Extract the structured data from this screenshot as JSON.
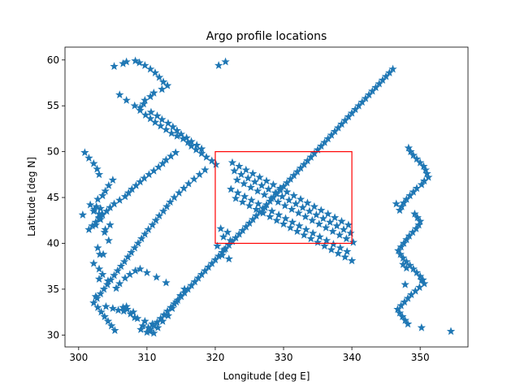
{
  "chart_data": {
    "type": "scatter",
    "title": "Argo profile locations",
    "xlabel": "Longitude [deg E]",
    "ylabel": "Latitude [deg N]",
    "xlim": [
      298,
      357
    ],
    "ylim": [
      28.7,
      61.4
    ],
    "xticks": [
      300,
      310,
      320,
      330,
      340,
      350
    ],
    "yticks": [
      30,
      35,
      40,
      45,
      50,
      55,
      60
    ],
    "grid": false,
    "legend": "none",
    "marker": "star",
    "marker_color": "#1f77b4",
    "box": {
      "x": [
        320,
        340
      ],
      "y": [
        40,
        50
      ],
      "color": "#ff0000"
    },
    "series": [
      {
        "x": [
          300.6,
          302.2,
          302.6,
          303.2,
          303.4,
          303.0,
          302.5,
          303.8,
          304.4,
          302.8,
          303.1,
          303.0,
          302.5,
          304.0,
          305.0,
          305.8,
          306.5,
          307.1,
          308.0,
          308.6,
          309.4,
          310.2,
          310.8,
          309.7,
          308.2,
          307.6,
          307.0,
          306.6,
          309.1,
          310.4,
          311.0,
          311.6,
          312.3,
          313.1,
          313.7,
          314.3,
          314.9,
          315.5,
          312.8,
          311.4,
          310.0,
          309.0,
          308.3,
          307.5,
          306.8,
          306.0,
          305.5,
          304.3,
          303.5,
          303.0,
          302.2,
          303.6,
          303.9,
          304.6,
          303.2,
          303.0,
          302.3,
          301.7,
          302.8,
          303.5,
          303.9,
          304.4,
          305.0,
          303.0,
          302.7,
          302.2,
          301.5,
          300.9,
          305.2,
          306.5,
          307.0,
          308.3,
          308.9,
          309.7,
          310.5,
          311.2,
          311.8,
          312.4,
          313.0,
          312.2,
          311.0,
          310.5,
          309.7,
          309.5,
          309.0,
          310.6,
          311.5,
          312.2,
          313.1,
          313.8,
          314.4,
          315.0,
          315.8,
          316.5,
          317.3,
          318.0,
          314.2,
          313.5,
          312.8,
          312.3,
          311.7,
          311.0,
          310.3,
          309.6,
          309.0,
          308.4,
          307.8,
          307.3,
          306.8,
          306.0,
          305.2,
          304.6,
          304.1,
          303.5,
          303.0,
          302.5,
          302.0,
          301.5,
          306.0,
          307.0,
          308.2,
          309.0,
          309.8,
          310.5,
          311.2,
          312.0,
          312.8,
          313.6,
          314.4,
          315.3,
          316.0,
          316.5,
          317.2,
          318.0,
          318.7,
          319.5,
          320.1,
          318.5,
          317.7,
          316.9,
          316.1,
          315.4,
          314.7,
          314.0,
          313.4,
          312.9,
          312.4,
          311.8,
          311.3,
          310.8,
          310.2,
          309.7,
          309.2,
          308.7,
          308.2,
          307.7,
          307.2,
          306.7,
          306.2,
          305.7,
          305.2,
          304.7,
          304.2,
          303.7,
          303.2,
          302.7,
          302.2,
          302.8,
          303.3,
          303.8,
          304.3,
          304.8,
          305.3,
          310.0,
          310.5,
          311.0,
          311.5,
          312.0,
          312.5,
          313.0,
          313.5,
          314.0,
          314.5,
          315.0,
          315.5,
          316.0,
          316.5,
          317.0,
          317.5,
          318.0,
          318.5,
          319.0,
          319.5,
          320.0,
          320.5,
          321.0,
          321.5,
          322.0,
          322.5,
          323.0,
          323.5,
          324.0,
          324.5,
          325.0,
          325.5,
          326.0,
          326.5,
          327.0,
          327.5,
          328.0,
          328.5,
          329.0,
          329.5,
          330.0,
          330.5,
          331.0,
          331.5,
          332.0,
          332.5,
          333.0,
          333.5,
          334.0,
          334.5,
          335.0,
          335.5,
          336.0,
          336.5,
          337.0,
          337.5,
          338.0,
          338.5,
          339.0,
          339.5,
          340.0,
          340.5,
          341.0,
          341.5,
          342.0,
          342.5,
          343.0,
          343.5,
          344.0,
          344.5,
          345.0,
          345.5,
          346.0,
          320.5,
          321.5,
          322.5,
          323.5,
          324.5,
          325.5,
          326.5,
          327.5,
          328.5,
          329.5,
          330.5,
          331.5,
          332.5,
          333.5,
          334.5,
          335.5,
          336.5,
          337.5,
          338.5,
          339.5,
          320.8,
          321.8,
          322.8,
          323.8,
          324.8,
          325.8,
          326.8,
          327.8,
          328.8,
          329.8,
          330.8,
          331.8,
          332.8,
          333.8,
          334.8,
          335.8,
          336.8,
          337.8,
          338.8,
          339.8,
          321.2,
          322.2,
          323.2,
          324.2,
          325.2,
          326.2,
          327.2,
          328.2,
          329.2,
          330.2,
          331.2,
          332.2,
          333.2,
          334.2,
          335.2,
          336.2,
          337.2,
          338.2,
          339.2,
          340.2,
          320.3,
          321.3,
          322.3,
          323.3,
          324.3,
          325.3,
          326.3,
          327.3,
          328.3,
          329.3,
          330.3,
          331.3,
          332.3,
          333.3,
          334.3,
          335.3,
          336.3,
          337.3,
          338.3,
          339.3,
          321.0,
          322.0,
          323.0,
          324.0,
          325.0,
          326.0,
          327.0,
          328.0,
          329.0,
          330.0,
          331.0,
          332.0,
          333.0,
          334.0,
          335.0,
          336.0,
          337.0,
          338.0,
          339.0,
          340.0,
          347.5,
          348.0,
          348.3,
          348.6,
          349.0,
          349.5,
          350.0,
          350.5,
          350.8,
          351.0,
          351.2,
          350.6,
          350.2,
          349.5,
          349.0,
          348.5,
          348.0,
          347.6,
          347.3,
          347.0,
          349.2,
          349.6,
          350.0,
          349.8,
          349.4,
          348.9,
          348.4,
          348.0,
          347.6,
          347.2,
          346.8,
          347.1,
          347.5,
          348.0,
          348.5,
          349.0,
          349.5,
          350.0,
          350.4,
          350.6,
          349.9,
          349.3,
          348.7,
          348.2,
          347.7,
          347.2,
          346.7,
          347.0,
          347.4,
          347.8,
          348.2,
          350.2,
          354.5,
          346.5,
          347.8,
          350.2
        ],
        "y": [
          43.1,
          43.5,
          44.0,
          43.8,
          43.2,
          42.8,
          42.0,
          41.2,
          40.3,
          39.5,
          38.8,
          36.1,
          34.2,
          33.1,
          32.9,
          32.7,
          33.0,
          32.8,
          32.5,
          31.8,
          31.0,
          30.8,
          31.2,
          31.5,
          31.9,
          32.3,
          33.1,
          32.6,
          30.6,
          30.4,
          30.2,
          30.8,
          31.5,
          32.1,
          32.9,
          33.6,
          34.3,
          35.0,
          35.7,
          36.3,
          36.8,
          37.2,
          37.0,
          36.6,
          36.2,
          35.6,
          35.1,
          35.9,
          36.6,
          37.2,
          37.8,
          38.8,
          41.5,
          42.0,
          42.6,
          43.2,
          43.7,
          44.2,
          44.8,
          45.2,
          45.7,
          46.3,
          46.9,
          47.5,
          48.1,
          48.7,
          49.3,
          49.9,
          59.3,
          59.6,
          59.8,
          59.9,
          59.7,
          59.4,
          59.0,
          58.6,
          58.1,
          57.6,
          57.2,
          56.8,
          56.4,
          56.0,
          55.6,
          55.2,
          54.8,
          54.3,
          53.9,
          53.5,
          53.1,
          52.7,
          52.3,
          51.9,
          51.5,
          51.1,
          50.7,
          50.3,
          49.9,
          49.5,
          49.1,
          48.7,
          48.3,
          47.9,
          47.5,
          47.1,
          46.7,
          46.3,
          45.9,
          45.5,
          45.1,
          44.7,
          44.3,
          43.9,
          43.5,
          43.1,
          42.7,
          42.3,
          41.9,
          41.5,
          56.2,
          55.6,
          55.0,
          54.5,
          54.0,
          53.6,
          53.2,
          52.8,
          52.4,
          52.0,
          51.7,
          51.4,
          51.0,
          50.6,
          50.2,
          49.8,
          49.4,
          49.0,
          48.6,
          48.0,
          47.5,
          47.0,
          46.5,
          46.0,
          45.5,
          45.0,
          44.5,
          44.0,
          43.5,
          43.0,
          42.5,
          42.0,
          41.5,
          41.0,
          40.5,
          40.0,
          39.5,
          39.0,
          38.5,
          38.0,
          37.5,
          37.0,
          36.5,
          36.0,
          35.5,
          35.0,
          34.5,
          34.0,
          33.5,
          33.0,
          32.5,
          32.0,
          31.5,
          31.0,
          30.5,
          30.3,
          30.6,
          31.0,
          31.4,
          31.8,
          32.2,
          32.6,
          33.0,
          33.4,
          33.8,
          34.2,
          34.6,
          35.0,
          35.4,
          35.8,
          36.2,
          36.6,
          37.0,
          37.4,
          37.8,
          38.2,
          38.6,
          39.0,
          39.4,
          39.8,
          40.2,
          40.6,
          41.0,
          41.4,
          41.8,
          42.2,
          42.6,
          43.0,
          43.4,
          43.8,
          44.2,
          44.6,
          45.0,
          45.4,
          45.8,
          46.2,
          46.6,
          47.0,
          47.4,
          47.8,
          48.2,
          48.6,
          49.0,
          49.4,
          49.8,
          50.2,
          50.6,
          51.0,
          51.4,
          51.8,
          52.2,
          52.6,
          53.0,
          53.4,
          53.8,
          54.2,
          54.6,
          55.0,
          55.4,
          55.8,
          56.2,
          56.6,
          57.0,
          57.4,
          57.8,
          58.2,
          58.6,
          59.0,
          59.4,
          59.8,
          48.8,
          48.4,
          48.0,
          47.6,
          47.2,
          46.8,
          46.4,
          46.0,
          45.6,
          45.2,
          44.8,
          44.4,
          44.0,
          43.6,
          43.2,
          42.8,
          42.4,
          42.0,
          41.6,
          41.2,
          47.9,
          47.5,
          47.1,
          46.7,
          46.3,
          45.9,
          45.5,
          45.1,
          44.7,
          44.3,
          43.9,
          43.5,
          43.1,
          42.7,
          42.3,
          41.9,
          41.5,
          41.1,
          40.7,
          40.3,
          46.9,
          46.5,
          46.1,
          45.7,
          45.3,
          44.9,
          44.5,
          44.1,
          43.7,
          43.3,
          42.9,
          42.5,
          42.1,
          41.7,
          41.3,
          40.9,
          40.5,
          40.1,
          39.7,
          39.3,
          45.9,
          45.5,
          45.1,
          44.7,
          44.3,
          43.9,
          43.5,
          43.1,
          42.7,
          42.3,
          41.9,
          41.5,
          41.1,
          40.7,
          40.3,
          39.9,
          39.5,
          39.1,
          38.7,
          38.3,
          44.9,
          44.5,
          44.1,
          43.7,
          43.3,
          42.9,
          42.5,
          42.1,
          41.7,
          41.3,
          40.9,
          40.5,
          40.1,
          39.7,
          39.3,
          38.9,
          38.5,
          38.1,
          37.7,
          37.3,
          50.4,
          50.0,
          49.6,
          49.2,
          48.8,
          48.4,
          48.0,
          47.6,
          47.2,
          46.8,
          46.4,
          46.0,
          45.6,
          45.2,
          44.8,
          44.4,
          44.0,
          43.6,
          43.2,
          42.8,
          42.4,
          42.0,
          41.6,
          41.2,
          40.8,
          40.4,
          40.0,
          39.6,
          39.2,
          38.8,
          38.4,
          38.0,
          37.6,
          37.2,
          36.8,
          36.4,
          36.0,
          35.6,
          35.2,
          34.8,
          34.4,
          34.0,
          33.6,
          33.2,
          32.8,
          32.4,
          32.0,
          31.6,
          31.2,
          30.8,
          30.4,
          44.3,
          35.5,
          36.0
        ]
      }
    ]
  }
}
